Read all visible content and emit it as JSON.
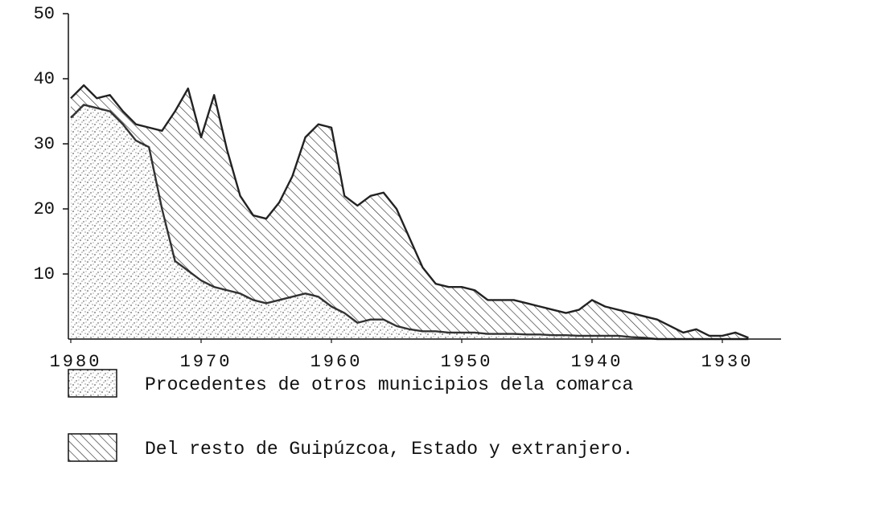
{
  "chart_data": {
    "type": "stacked_area",
    "x": [
      1980,
      1979,
      1978,
      1977,
      1976,
      1975,
      1974,
      1973,
      1972,
      1971,
      1970,
      1969,
      1968,
      1967,
      1966,
      1965,
      1964,
      1963,
      1962,
      1961,
      1960,
      1959,
      1958,
      1957,
      1956,
      1955,
      1954,
      1953,
      1952,
      1951,
      1950,
      1949,
      1948,
      1947,
      1946,
      1945,
      1944,
      1943,
      1942,
      1941,
      1940,
      1939,
      1938,
      1937,
      1936,
      1935,
      1934,
      1933,
      1932,
      1931,
      1930,
      1929,
      1928
    ],
    "series": [
      {
        "name": "Procedentes de otros municipios dela comarca",
        "color": "#333333",
        "pattern": "stipple",
        "values": [
          34,
          36,
          35.5,
          35,
          33,
          30.5,
          29.5,
          20,
          12,
          10.5,
          9,
          8,
          7.5,
          7,
          6,
          5.5,
          6,
          6.5,
          7,
          6.5,
          5,
          4,
          2.5,
          3,
          3,
          2,
          1.5,
          1.2,
          1.2,
          1,
          1,
          1,
          0.8,
          0.8,
          0.8,
          0.7,
          0.7,
          0.6,
          0.6,
          0.5,
          0.5,
          0.5,
          0.5,
          0.3,
          0.2,
          0,
          0,
          0,
          0,
          0,
          0,
          0,
          0
        ]
      },
      {
        "name": "Del resto de Guipúzcoa, Estado y extranjero.",
        "color": "#222222",
        "pattern": "hatch",
        "values": [
          3,
          3,
          1.5,
          2.5,
          2,
          2.5,
          3,
          12,
          23,
          28,
          22,
          29.5,
          21.5,
          15,
          13,
          13,
          15,
          18.5,
          24,
          26.5,
          27.5,
          18,
          18,
          19,
          19.5,
          18,
          14,
          9.8,
          7.3,
          7,
          7,
          6.5,
          5.2,
          5.2,
          5.2,
          4.8,
          4.3,
          3.9,
          3.4,
          4,
          5.5,
          4.5,
          4,
          3.7,
          3.3,
          3,
          2,
          1,
          1.5,
          0.5,
          0.5,
          1,
          0.2
        ]
      }
    ],
    "xlim": [
      1980,
      1925
    ],
    "xticks": [
      1980,
      1970,
      1960,
      1950,
      1940,
      1930
    ],
    "ylim": [
      0,
      50
    ],
    "yticks": [
      10,
      20,
      30,
      40,
      50
    ],
    "legend": "bottom"
  }
}
